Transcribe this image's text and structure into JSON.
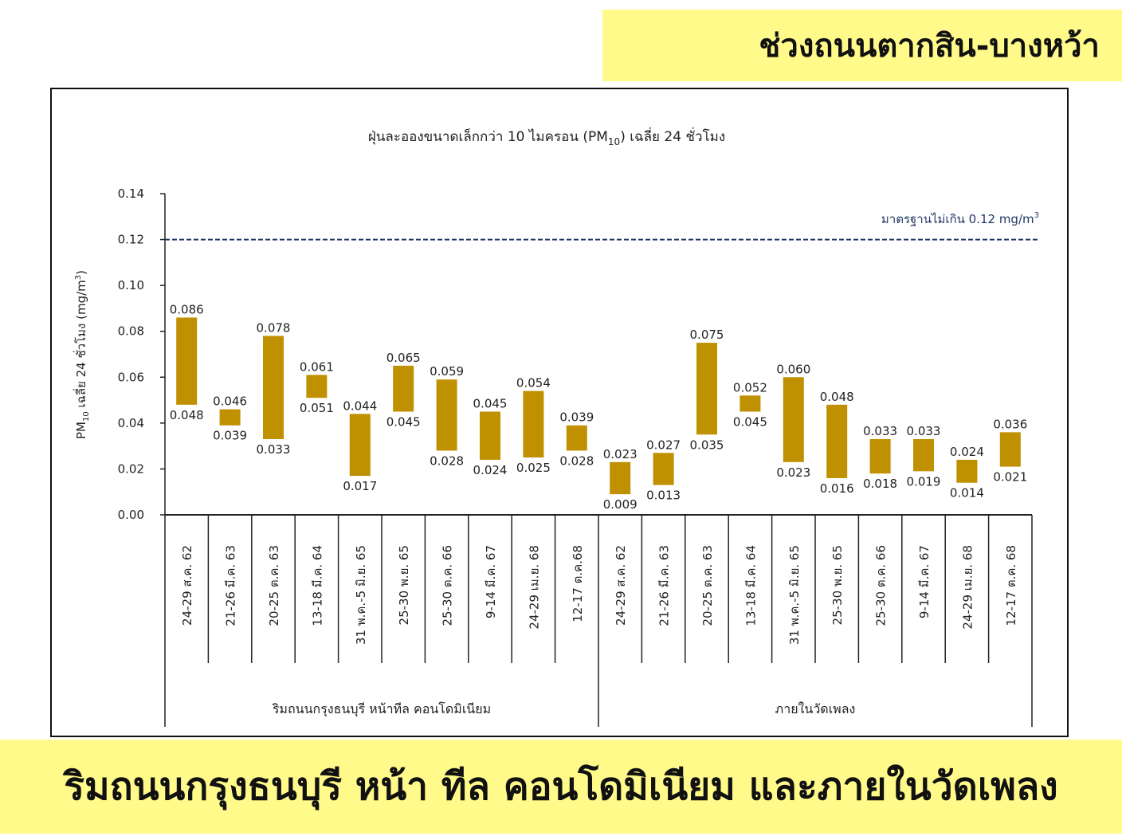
{
  "header": {
    "title": "ช่วงถนนตากสิน-บางหว้า"
  },
  "footer": {
    "caption": "ริมถนนกรุงธนบุรี หน้า ทีล คอนโดมิเนียม และภายในวัดเพลง"
  },
  "chart_data": {
    "type": "bar",
    "subtype": "floating-range",
    "title_parts": {
      "before": "ฝุ่นละอองขนาดเล็กกว่า 10 ไมครอน (PM",
      "sub": "10",
      "after": ") เฉลี่ย 24 ชั่วโมง"
    },
    "ylabel_parts": {
      "pm": "PM",
      "pm_sub": "10",
      "mid": "  เฉลี่ย 24 ชั่วโมง (mg/m",
      "sup": "3",
      "end": ")"
    },
    "ylim": [
      0,
      0.14
    ],
    "yticks": [
      "0.00",
      "0.02",
      "0.04",
      "0.06",
      "0.08",
      "0.10",
      "0.12",
      "0.14"
    ],
    "bar_color": "#bf9000",
    "standard_line": {
      "value": 0.12,
      "label": "มาตรฐานไม่เกิน 0.12 mg/m",
      "label_sup": "3",
      "color": "#1f3864"
    },
    "groups": [
      {
        "name": "ริมถนนกรุงธนบุรี หน้าทีล คอนโดมิเนียม",
        "categories": [
          "24-29 ส.ค. 62",
          "21-26 มี.ค. 63",
          "20-25 ต.ค. 63",
          "13-18 มี.ค. 64",
          "31 พ.ค.-5 มิ.ย. 65",
          "25-30 พ.ย. 65",
          "25-30 ต.ค. 66",
          "9-14 มี.ค. 67",
          "24-29 เม.ย. 68",
          "12-17 ต.ค.68"
        ],
        "min": [
          0.048,
          0.039,
          0.033,
          0.051,
          0.017,
          0.045,
          0.028,
          0.024,
          0.025,
          0.028
        ],
        "max": [
          0.086,
          0.046,
          0.078,
          0.061,
          0.044,
          0.065,
          0.059,
          0.045,
          0.054,
          0.039
        ],
        "min_labels": [
          "0.048",
          "0.039",
          "0.033",
          "0.051",
          "0.017",
          "0.045",
          "0.028",
          "0.024",
          "0.025",
          "0.028"
        ],
        "max_labels": [
          "0.086",
          "0.046",
          "0.078",
          "0.061",
          "0.044",
          "0.065",
          "0.059",
          "0.045",
          "0.054",
          "0.039"
        ]
      },
      {
        "name": "ภายในวัดเพลง",
        "categories": [
          "24-29 ส.ค. 62",
          "21-26 มี.ค. 63",
          "20-25 ต.ค. 63",
          "13-18 มี.ค. 64",
          "31 พ.ค.-5 มิ.ย. 65",
          "25-30 พ.ย. 65",
          "25-30 ต.ค. 66",
          "9-14 มี.ค. 67",
          "24-29 เม.ย. 68",
          "12-17 ต.ค. 68"
        ],
        "min": [
          0.009,
          0.013,
          0.035,
          0.045,
          0.023,
          0.016,
          0.018,
          0.019,
          0.014,
          0.021
        ],
        "max": [
          0.023,
          0.027,
          0.075,
          0.052,
          0.06,
          0.048,
          0.033,
          0.033,
          0.024,
          0.036
        ],
        "min_labels": [
          "0.009",
          "0.013",
          "0.035",
          "0.045",
          "0.023",
          "0.016",
          "0.018",
          "0.019",
          "0.014",
          "0.021"
        ],
        "max_labels": [
          "0.023",
          "0.027",
          "0.075",
          "0.052",
          "0.060",
          "0.048",
          "0.033",
          "0.033",
          "0.024",
          "0.036"
        ]
      }
    ]
  }
}
